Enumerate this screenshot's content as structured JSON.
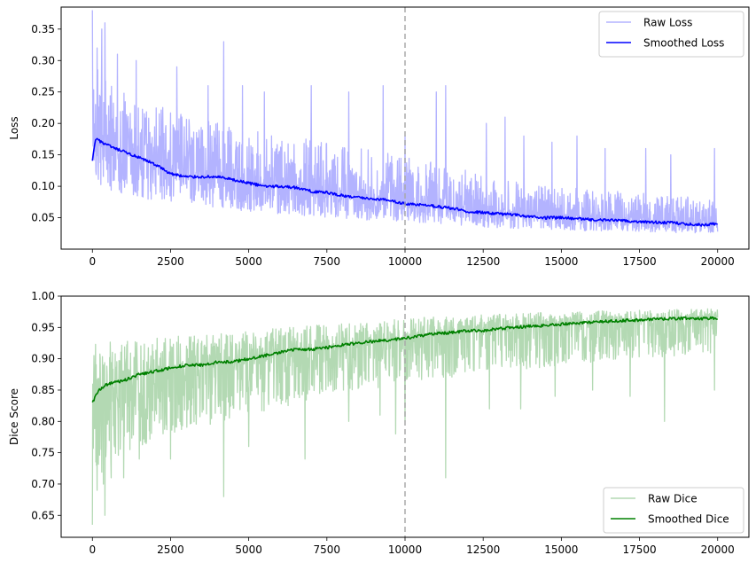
{
  "chart_data": [
    {
      "type": "line",
      "title": "",
      "xlabel": "",
      "ylabel": "Loss",
      "xlim": [
        -1000,
        21000
      ],
      "ylim": [
        0.0,
        0.385
      ],
      "xticks": [
        0,
        2500,
        5000,
        7500,
        10000,
        12500,
        15000,
        17500,
        20000
      ],
      "yticks": [
        0.05,
        0.1,
        0.15,
        0.2,
        0.25,
        0.3,
        0.35
      ],
      "ytick_labels": [
        "0.05",
        "0.10",
        "0.15",
        "0.20",
        "0.25",
        "0.30",
        "0.35"
      ],
      "vline_x": 10000,
      "legend_position": "top-right",
      "grid": false,
      "iterations": 20000,
      "series": [
        {
          "name": "Raw Loss",
          "color": "#b3b3ff",
          "style": "noisy",
          "points": [
            [
              0,
              0.16
            ],
            [
              1000,
              0.15
            ],
            [
              2500,
              0.13
            ],
            [
              5000,
              0.105
            ],
            [
              7500,
              0.085
            ],
            [
              10000,
              0.075
            ],
            [
              12500,
              0.06
            ],
            [
              15000,
              0.05
            ],
            [
              17500,
              0.045
            ],
            [
              20000,
              0.04
            ]
          ],
          "lower_band": [
            [
              0,
              0.09
            ],
            [
              2500,
              0.075
            ],
            [
              5000,
              0.06
            ],
            [
              7500,
              0.05
            ],
            [
              10000,
              0.043
            ],
            [
              12500,
              0.035
            ],
            [
              15000,
              0.03
            ],
            [
              17500,
              0.027
            ],
            [
              20000,
              0.025
            ]
          ],
          "upper_band": [
            [
              0,
              0.3
            ],
            [
              1000,
              0.26
            ],
            [
              2500,
              0.22
            ],
            [
              5000,
              0.19
            ],
            [
              7500,
              0.17
            ],
            [
              10000,
              0.15
            ],
            [
              12500,
              0.12
            ],
            [
              15000,
              0.1
            ],
            [
              17500,
              0.09
            ],
            [
              20000,
              0.08
            ]
          ],
          "spikes": [
            [
              0,
              0.38
            ],
            [
              150,
              0.32
            ],
            [
              300,
              0.35
            ],
            [
              400,
              0.36
            ],
            [
              800,
              0.31
            ],
            [
              1400,
              0.3
            ],
            [
              2700,
              0.29
            ],
            [
              3700,
              0.26
            ],
            [
              4200,
              0.33
            ],
            [
              4800,
              0.26
            ],
            [
              5500,
              0.25
            ],
            [
              7000,
              0.26
            ],
            [
              8200,
              0.25
            ],
            [
              9300,
              0.26
            ],
            [
              10000,
              0.18
            ],
            [
              11000,
              0.25
            ],
            [
              11300,
              0.26
            ],
            [
              12600,
              0.2
            ],
            [
              13200,
              0.21
            ],
            [
              13800,
              0.18
            ],
            [
              14700,
              0.17
            ],
            [
              15500,
              0.18
            ],
            [
              16400,
              0.16
            ],
            [
              17700,
              0.16
            ],
            [
              18500,
              0.15
            ],
            [
              19900,
              0.16
            ]
          ]
        },
        {
          "name": "Smoothed Loss",
          "color": "#0000ff",
          "style": "smooth",
          "points": [
            [
              0,
              0.14
            ],
            [
              100,
              0.175
            ],
            [
              300,
              0.17
            ],
            [
              700,
              0.16
            ],
            [
              1000,
              0.155
            ],
            [
              1500,
              0.145
            ],
            [
              2000,
              0.135
            ],
            [
              2500,
              0.12
            ],
            [
              3000,
              0.115
            ],
            [
              3500,
              0.115
            ],
            [
              4000,
              0.115
            ],
            [
              4500,
              0.11
            ],
            [
              5000,
              0.105
            ],
            [
              5500,
              0.1
            ],
            [
              6000,
              0.1
            ],
            [
              6500,
              0.098
            ],
            [
              7000,
              0.092
            ],
            [
              7500,
              0.09
            ],
            [
              8000,
              0.085
            ],
            [
              8500,
              0.082
            ],
            [
              9000,
              0.08
            ],
            [
              9500,
              0.078
            ],
            [
              10000,
              0.072
            ],
            [
              10500,
              0.07
            ],
            [
              11000,
              0.068
            ],
            [
              11500,
              0.065
            ],
            [
              12000,
              0.06
            ],
            [
              12500,
              0.058
            ],
            [
              13000,
              0.056
            ],
            [
              13500,
              0.055
            ],
            [
              14000,
              0.052
            ],
            [
              14500,
              0.05
            ],
            [
              15000,
              0.05
            ],
            [
              15500,
              0.048
            ],
            [
              16000,
              0.047
            ],
            [
              16500,
              0.046
            ],
            [
              17000,
              0.045
            ],
            [
              17500,
              0.044
            ],
            [
              18000,
              0.043
            ],
            [
              18500,
              0.042
            ],
            [
              19000,
              0.04
            ],
            [
              19500,
              0.039
            ],
            [
              20000,
              0.04
            ]
          ]
        }
      ]
    },
    {
      "type": "line",
      "title": "",
      "xlabel": "",
      "ylabel": "Dice Score",
      "xlim": [
        -1000,
        21000
      ],
      "ylim": [
        0.615,
        1.0
      ],
      "xticks": [
        0,
        2500,
        5000,
        7500,
        10000,
        12500,
        15000,
        17500,
        20000
      ],
      "yticks": [
        0.65,
        0.7,
        0.75,
        0.8,
        0.85,
        0.9,
        0.95,
        1.0
      ],
      "ytick_labels": [
        "0.65",
        "0.70",
        "0.75",
        "0.80",
        "0.85",
        "0.90",
        "0.95",
        "1.00"
      ],
      "vline_x": 10000,
      "legend_position": "bottom-right",
      "grid": false,
      "iterations": 20000,
      "series": [
        {
          "name": "Raw Dice",
          "color": "#b3d9b3",
          "style": "noisy",
          "points": [
            [
              0,
              0.84
            ],
            [
              1000,
              0.86
            ],
            [
              2500,
              0.88
            ],
            [
              5000,
              0.9
            ],
            [
              7500,
              0.915
            ],
            [
              10000,
              0.93
            ],
            [
              12500,
              0.945
            ],
            [
              15000,
              0.955
            ],
            [
              17500,
              0.96
            ],
            [
              20000,
              0.965
            ]
          ],
          "lower_band": [
            [
              0,
              0.7
            ],
            [
              1000,
              0.75
            ],
            [
              2500,
              0.78
            ],
            [
              5000,
              0.81
            ],
            [
              7500,
              0.84
            ],
            [
              10000,
              0.86
            ],
            [
              12500,
              0.875
            ],
            [
              15000,
              0.89
            ],
            [
              17500,
              0.9
            ],
            [
              20000,
              0.91
            ]
          ],
          "upper_band": [
            [
              0,
              0.925
            ],
            [
              2500,
              0.935
            ],
            [
              5000,
              0.945
            ],
            [
              7500,
              0.955
            ],
            [
              10000,
              0.965
            ],
            [
              12500,
              0.97
            ],
            [
              15000,
              0.975
            ],
            [
              17500,
              0.978
            ],
            [
              20000,
              0.98
            ]
          ],
          "spikes": [
            [
              0,
              0.635
            ],
            [
              150,
              0.69
            ],
            [
              350,
              0.7
            ],
            [
              400,
              0.65
            ],
            [
              600,
              0.71
            ],
            [
              1000,
              0.71
            ],
            [
              1500,
              0.74
            ],
            [
              2500,
              0.74
            ],
            [
              4200,
              0.68
            ],
            [
              5000,
              0.76
            ],
            [
              6800,
              0.74
            ],
            [
              8200,
              0.8
            ],
            [
              9200,
              0.81
            ],
            [
              9700,
              0.78
            ],
            [
              10000,
              0.8
            ],
            [
              11300,
              0.71
            ],
            [
              12700,
              0.82
            ],
            [
              13700,
              0.82
            ],
            [
              14800,
              0.84
            ],
            [
              16000,
              0.85
            ],
            [
              17200,
              0.84
            ],
            [
              18300,
              0.8
            ],
            [
              19900,
              0.85
            ]
          ]
        },
        {
          "name": "Smoothed Dice",
          "color": "#008000",
          "style": "smooth",
          "points": [
            [
              0,
              0.83
            ],
            [
              200,
              0.85
            ],
            [
              500,
              0.86
            ],
            [
              1000,
              0.865
            ],
            [
              1500,
              0.875
            ],
            [
              2000,
              0.88
            ],
            [
              2500,
              0.885
            ],
            [
              3000,
              0.89
            ],
            [
              3500,
              0.89
            ],
            [
              4000,
              0.895
            ],
            [
              4500,
              0.895
            ],
            [
              5000,
              0.9
            ],
            [
              5500,
              0.905
            ],
            [
              6000,
              0.91
            ],
            [
              6500,
              0.915
            ],
            [
              7000,
              0.915
            ],
            [
              7500,
              0.918
            ],
            [
              8000,
              0.922
            ],
            [
              8500,
              0.925
            ],
            [
              9000,
              0.928
            ],
            [
              9500,
              0.93
            ],
            [
              10000,
              0.933
            ],
            [
              10500,
              0.937
            ],
            [
              11000,
              0.94
            ],
            [
              11500,
              0.942
            ],
            [
              12000,
              0.945
            ],
            [
              12500,
              0.945
            ],
            [
              13000,
              0.948
            ],
            [
              13500,
              0.95
            ],
            [
              14000,
              0.952
            ],
            [
              14500,
              0.953
            ],
            [
              15000,
              0.955
            ],
            [
              15500,
              0.957
            ],
            [
              16000,
              0.958
            ],
            [
              16500,
              0.96
            ],
            [
              17000,
              0.961
            ],
            [
              17500,
              0.962
            ],
            [
              18000,
              0.963
            ],
            [
              18500,
              0.964
            ],
            [
              19000,
              0.965
            ],
            [
              19500,
              0.964
            ],
            [
              20000,
              0.965
            ]
          ]
        }
      ]
    }
  ]
}
